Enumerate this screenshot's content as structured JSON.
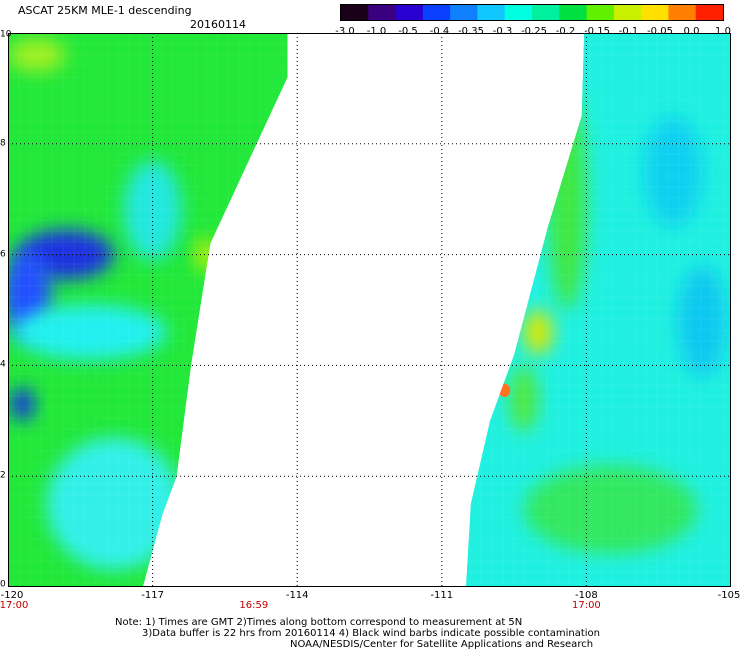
{
  "header": {
    "title": "ASCAT 25KM MLE-1 descending",
    "date": "20160114"
  },
  "colorbar": {
    "labels": [
      "-3.0",
      "-1.0",
      "-0.5",
      "-0.4",
      "-0.35",
      "-0.3",
      "-0.25",
      "-0.2",
      "-0.15",
      "-0.1",
      "-0.05",
      "0.0",
      "1.0"
    ],
    "colors": [
      "#1a0018",
      "#3a0080",
      "#2a00d0",
      "#0a40ff",
      "#1080ff",
      "#10c8ff",
      "#00ffe0",
      "#00f0a0",
      "#00e040",
      "#60f000",
      "#c8f000",
      "#ffe000",
      "#ff8000",
      "#ff2000"
    ]
  },
  "axes": {
    "y_ticks": [
      "0",
      "2",
      "4",
      "6",
      "8",
      "10"
    ],
    "x_ticks": [
      "-120",
      "-117",
      "-114",
      "-111",
      "-108",
      "-105"
    ],
    "x_tick_values": [
      -120,
      -117,
      -114,
      -111,
      -108,
      -105
    ],
    "time_labels": [
      {
        "text": "17:00",
        "lon": -120
      },
      {
        "text": "16:59",
        "lon": -114.9
      },
      {
        "text": "17:00",
        "lon": -108
      }
    ],
    "xlim": [
      -120,
      -105
    ],
    "ylim": [
      0,
      10
    ]
  },
  "swaths": [
    {
      "name": "left-swath",
      "color": "#22e83a",
      "region": [
        [
          -120,
          10
        ],
        [
          -114.2,
          10
        ],
        [
          -114.2,
          9.2
        ],
        [
          -115.8,
          6.2
        ],
        [
          -116.2,
          4.0
        ],
        [
          -116.5,
          2.0
        ],
        [
          -116.8,
          1.3
        ],
        [
          -117.2,
          0
        ],
        [
          -120,
          0
        ]
      ]
    },
    {
      "name": "right-swath",
      "color": "#20f0e0",
      "region": [
        [
          -108.05,
          10
        ],
        [
          -105,
          10
        ],
        [
          -105,
          0
        ],
        [
          -110.5,
          0
        ],
        [
          -110.4,
          1.5
        ],
        [
          -110,
          3.0
        ],
        [
          -109.5,
          4.2
        ],
        [
          -108.8,
          6.5
        ],
        [
          -108.1,
          8.5
        ]
      ]
    }
  ],
  "features": [
    {
      "name": "blue-low-left",
      "color": "#1a30e0",
      "center": [
        -118.8,
        6.0
      ],
      "rx": 1.0,
      "ry": 0.45
    },
    {
      "name": "blue-band-left",
      "color": "#2050ff",
      "center": [
        -119.6,
        5.3
      ],
      "rx": 0.5,
      "ry": 0.8
    },
    {
      "name": "blue-spot-left",
      "color": "#1030e0",
      "center": [
        -119.7,
        3.3
      ],
      "rx": 0.25,
      "ry": 0.3
    },
    {
      "name": "cyan-band-left",
      "color": "#20f0f0",
      "center": [
        -118.3,
        4.6
      ],
      "rx": 1.6,
      "ry": 0.5
    },
    {
      "name": "cyan-lower-left",
      "color": "#30f0e8",
      "center": [
        -117.8,
        1.5
      ],
      "rx": 1.4,
      "ry": 1.2
    },
    {
      "name": "cyan-mid-left",
      "color": "#20e8e0",
      "center": [
        -117.0,
        6.8
      ],
      "rx": 0.6,
      "ry": 0.9
    },
    {
      "name": "yellow-edge-left",
      "color": "#c8f000",
      "center": [
        -115.9,
        6.0
      ],
      "rx": 0.2,
      "ry": 0.3
    },
    {
      "name": "yellowgreen-top-left",
      "color": "#a0f020",
      "center": [
        -119.4,
        9.6
      ],
      "rx": 0.6,
      "ry": 0.3
    },
    {
      "name": "green-edge-right",
      "color": "#40e840",
      "center": [
        -108.4,
        7.0
      ],
      "rx": 0.4,
      "ry": 2.0
    },
    {
      "name": "yellow-edge-right",
      "color": "#d8e800",
      "center": [
        -109.0,
        4.6
      ],
      "rx": 0.3,
      "ry": 0.4
    },
    {
      "name": "green-edge-right-low",
      "color": "#50e840",
      "center": [
        -109.3,
        3.4
      ],
      "rx": 0.3,
      "ry": 0.6
    },
    {
      "name": "orange-spot-right",
      "color": "#ff7020",
      "center": [
        -109.7,
        3.55
      ],
      "rx": 0.12,
      "ry": 0.12
    },
    {
      "name": "green-bottom-right",
      "color": "#30e860",
      "center": [
        -107.5,
        1.4
      ],
      "rx": 1.8,
      "ry": 0.8
    },
    {
      "name": "cyan-blueish-right",
      "color": "#10d0f0",
      "center": [
        -106.2,
        7.5
      ],
      "rx": 0.6,
      "ry": 1.0
    },
    {
      "name": "cyan-blueish-right-2",
      "color": "#10c8f0",
      "center": [
        -105.6,
        4.8
      ],
      "rx": 0.5,
      "ry": 1.0
    }
  ],
  "notes": {
    "line1": "Note: 1) Times are GMT 2)Times along bottom correspond to measurement at 5N",
    "line2": "3)Data buffer is 22 hrs from 20160114 4) Black wind barbs indicate possible contamination",
    "line3": "NOAA/NESDIS/Center for Satellite Applications and Research"
  }
}
